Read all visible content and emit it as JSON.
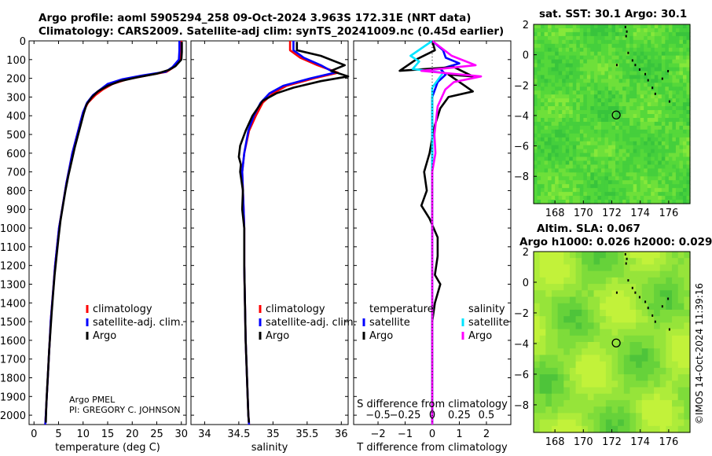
{
  "titles": {
    "line1": "Argo profile: aoml 5905294_258 09-Oct-2024 3.963S 172.31E (NRT data)",
    "line2": "Climatology: CARS2009. Satellite-adj clim: synTS_20241009.nc (0.45d earlier)",
    "sst": "sat. SST: 30.1 Argo: 30.1",
    "sla1": "Altim. SLA: 0.067",
    "sla2": "Argo h1000: 0.026 h2000: 0.029"
  },
  "side_stamp": "©IMOS 14-Oct-2024 11:39:16",
  "colors": {
    "climatology": "#ff0000",
    "satellite_adj": "#0000ff",
    "argo": "#000000",
    "sat_temp": "#0000ff",
    "sat_sal": "#00e5ff",
    "argo_sal": "#ff00ff"
  },
  "chart_data": [
    {
      "id": "temperature",
      "type": "line",
      "xlabel": "temperature (deg C)",
      "ylabel": "",
      "xlim": [
        -1,
        31
      ],
      "xticks": [
        0,
        5,
        10,
        15,
        20,
        25,
        30
      ],
      "ylim": [
        0,
        2050
      ],
      "yticks": [
        0,
        100,
        200,
        300,
        400,
        500,
        600,
        700,
        800,
        900,
        1000,
        1100,
        1200,
        1300,
        1400,
        1500,
        1600,
        1700,
        1800,
        1900,
        2000
      ],
      "legend": [
        "climatology",
        "satellite-adj. clim.",
        "Argo"
      ],
      "legend_position": "lower-right",
      "annotation": [
        "Argo PMEL",
        "PI: GREGORY C. JOHNSON"
      ],
      "series": [
        {
          "name": "climatology",
          "points": [
            [
              30.0,
              0
            ],
            [
              30.0,
              50
            ],
            [
              29.8,
              100
            ],
            [
              28.5,
              140
            ],
            [
              27,
              165
            ],
            [
              23,
              185
            ],
            [
              19,
              205
            ],
            [
              16,
              230
            ],
            [
              14,
              260
            ],
            [
              12.5,
              290
            ],
            [
              11,
              330
            ],
            [
              10,
              380
            ],
            [
              9.5,
              430
            ],
            [
              9,
              480
            ],
            [
              8.5,
              530
            ],
            [
              7.8,
              600
            ],
            [
              7.2,
              680
            ],
            [
              6.6,
              760
            ],
            [
              6.1,
              840
            ],
            [
              5.6,
              920
            ],
            [
              5.1,
              1000
            ],
            [
              4.7,
              1100
            ],
            [
              4.3,
              1200
            ],
            [
              4.0,
              1300
            ],
            [
              3.7,
              1400
            ],
            [
              3.4,
              1500
            ],
            [
              3.2,
              1600
            ],
            [
              3.0,
              1700
            ],
            [
              2.8,
              1800
            ],
            [
              2.6,
              1900
            ],
            [
              2.4,
              2000
            ],
            [
              2.3,
              2050
            ]
          ]
        },
        {
          "name": "satellite-adj. clim.",
          "points": [
            [
              29.6,
              0
            ],
            [
              29.6,
              50
            ],
            [
              29.5,
              100
            ],
            [
              28.2,
              140
            ],
            [
              26.8,
              165
            ],
            [
              22,
              185
            ],
            [
              18,
              205
            ],
            [
              15,
              230
            ],
            [
              13.5,
              260
            ],
            [
              12,
              290
            ],
            [
              10.8,
              330
            ],
            [
              10,
              380
            ],
            [
              9.5,
              430
            ],
            [
              9,
              480
            ],
            [
              8.5,
              530
            ],
            [
              7.8,
              600
            ],
            [
              7.2,
              680
            ],
            [
              6.6,
              760
            ],
            [
              6.1,
              840
            ],
            [
              5.6,
              920
            ],
            [
              5.1,
              1000
            ],
            [
              4.7,
              1100
            ],
            [
              4.3,
              1200
            ],
            [
              4.0,
              1300
            ],
            [
              3.7,
              1400
            ],
            [
              3.4,
              1500
            ],
            [
              3.2,
              1600
            ],
            [
              3.0,
              1700
            ],
            [
              2.8,
              1800
            ],
            [
              2.6,
              1900
            ],
            [
              2.4,
              2000
            ],
            [
              2.3,
              2050
            ]
          ]
        },
        {
          "name": "Argo",
          "points": [
            [
              30.1,
              5
            ],
            [
              30.1,
              60
            ],
            [
              30.0,
              100
            ],
            [
              28.8,
              135
            ],
            [
              27.5,
              155
            ],
            [
              25,
              175
            ],
            [
              21,
              195
            ],
            [
              17.5,
              215
            ],
            [
              15,
              240
            ],
            [
              13,
              270
            ],
            [
              11.8,
              300
            ],
            [
              10.7,
              340
            ],
            [
              10.1,
              390
            ],
            [
              9.6,
              440
            ],
            [
              9.0,
              500
            ],
            [
              8.3,
              570
            ],
            [
              7.6,
              650
            ],
            [
              7.0,
              720
            ],
            [
              6.4,
              800
            ],
            [
              5.9,
              880
            ],
            [
              5.4,
              960
            ],
            [
              5.0,
              1050
            ],
            [
              4.6,
              1150
            ],
            [
              4.2,
              1250
            ],
            [
              3.9,
              1350
            ],
            [
              3.6,
              1450
            ],
            [
              3.35,
              1550
            ],
            [
              3.1,
              1650
            ],
            [
              2.9,
              1750
            ],
            [
              2.7,
              1850
            ],
            [
              2.5,
              1950
            ],
            [
              2.4,
              2040
            ]
          ]
        }
      ]
    },
    {
      "id": "salinity",
      "type": "line",
      "xlabel": "salinity",
      "ylabel": "",
      "xlim": [
        33.8,
        36.1
      ],
      "xticks": [
        34,
        34.5,
        35,
        35.5,
        36
      ],
      "ylim": [
        0,
        2050
      ],
      "legend": [
        "climatology",
        "satellite-adj. clim.",
        "Argo"
      ],
      "legend_position": "lower-right",
      "series": [
        {
          "name": "climatology",
          "points": [
            [
              35.25,
              0
            ],
            [
              35.25,
              50
            ],
            [
              35.4,
              90
            ],
            [
              35.65,
              130
            ],
            [
              35.95,
              170
            ],
            [
              35.6,
              200
            ],
            [
              35.2,
              240
            ],
            [
              35.0,
              280
            ],
            [
              34.85,
              330
            ],
            [
              34.75,
              400
            ],
            [
              34.65,
              480
            ],
            [
              34.58,
              600
            ],
            [
              34.55,
              700
            ],
            [
              34.56,
              800
            ],
            [
              34.57,
              900
            ],
            [
              34.58,
              1000
            ],
            [
              34.58,
              1200
            ],
            [
              34.59,
              1400
            ],
            [
              34.6,
              1600
            ],
            [
              34.62,
              1800
            ],
            [
              34.64,
              2000
            ],
            [
              34.65,
              2050
            ]
          ]
        },
        {
          "name": "satellite-adj. clim.",
          "points": [
            [
              35.3,
              0
            ],
            [
              35.3,
              50
            ],
            [
              35.45,
              90
            ],
            [
              35.7,
              130
            ],
            [
              35.9,
              170
            ],
            [
              35.55,
              200
            ],
            [
              35.15,
              240
            ],
            [
              34.95,
              280
            ],
            [
              34.82,
              330
            ],
            [
              34.72,
              400
            ],
            [
              34.64,
              480
            ],
            [
              34.58,
              600
            ],
            [
              34.55,
              700
            ],
            [
              34.56,
              800
            ],
            [
              34.57,
              900
            ],
            [
              34.58,
              1000
            ],
            [
              34.58,
              1200
            ],
            [
              34.59,
              1400
            ],
            [
              34.6,
              1600
            ],
            [
              34.62,
              1800
            ],
            [
              34.64,
              2000
            ],
            [
              34.65,
              2050
            ]
          ]
        },
        {
          "name": "Argo",
          "points": [
            [
              35.35,
              5
            ],
            [
              35.35,
              50
            ],
            [
              35.7,
              80
            ],
            [
              36.05,
              130
            ],
            [
              35.85,
              160
            ],
            [
              36.1,
              190
            ],
            [
              35.7,
              215
            ],
            [
              35.3,
              250
            ],
            [
              35.05,
              280
            ],
            [
              34.85,
              320
            ],
            [
              34.7,
              400
            ],
            [
              34.6,
              480
            ],
            [
              34.52,
              560
            ],
            [
              34.5,
              620
            ],
            [
              34.53,
              660
            ],
            [
              34.52,
              700
            ],
            [
              34.56,
              800
            ],
            [
              34.55,
              900
            ],
            [
              34.58,
              1000
            ],
            [
              34.58,
              1200
            ],
            [
              34.59,
              1400
            ],
            [
              34.6,
              1600
            ],
            [
              34.62,
              1800
            ],
            [
              34.64,
              2000
            ],
            [
              34.65,
              2040
            ]
          ]
        }
      ]
    },
    {
      "id": "difference",
      "type": "line",
      "xlabel": "T difference from climatology",
      "secondary_xlabel": "S difference from climatology",
      "xlim": [
        -2.9,
        2.9
      ],
      "xticks": [
        -2,
        -1,
        0,
        1,
        2
      ],
      "s_ticks": [
        -0.5,
        -0.25,
        0,
        0.25,
        0.5
      ],
      "s_scale": 4,
      "ylim": [
        0,
        2050
      ],
      "legend_headers": [
        "temperature",
        "salinity"
      ],
      "legend": [
        "satellite",
        "Argo",
        "satellite",
        "Argo"
      ],
      "legend_position": "lower-right",
      "series": [
        {
          "name": "satellite (temperature)",
          "points": [
            [
              0,
              0
            ],
            [
              0.4,
              50
            ],
            [
              0.5,
              90
            ],
            [
              1.0,
              120
            ],
            [
              0.3,
              150
            ],
            [
              0.5,
              180
            ],
            [
              0.2,
              220
            ],
            [
              0,
              300
            ],
            [
              0,
              2050
            ]
          ]
        },
        {
          "name": "Argo (temperature)",
          "points": [
            [
              0,
              0
            ],
            [
              0.1,
              50
            ],
            [
              -0.6,
              100
            ],
            [
              -1.2,
              160
            ],
            [
              0.8,
              140
            ],
            [
              1.5,
              190
            ],
            [
              0.6,
              180
            ],
            [
              1.2,
              240
            ],
            [
              1.5,
              270
            ],
            [
              0.6,
              300
            ],
            [
              0.3,
              360
            ],
            [
              0.1,
              450
            ],
            [
              0,
              520
            ],
            [
              -0.1,
              600
            ],
            [
              -0.3,
              700
            ],
            [
              -0.2,
              800
            ],
            [
              -0.4,
              880
            ],
            [
              -0.1,
              950
            ],
            [
              0.2,
              1050
            ],
            [
              0.2,
              1150
            ],
            [
              0.1,
              1250
            ],
            [
              0.3,
              1300
            ],
            [
              0.1,
              1400
            ],
            [
              0,
              1500
            ],
            [
              0,
              2050
            ]
          ]
        },
        {
          "name": "satellite (salinity)",
          "points": [
            [
              0,
              0
            ],
            [
              -0.2,
              80
            ],
            [
              -0.12,
              110
            ],
            [
              -0.18,
              150
            ],
            [
              0.1,
              170
            ],
            [
              0,
              250
            ],
            [
              0,
              350
            ],
            [
              0,
              450
            ],
            [
              0,
              700
            ],
            [
              0,
              2050
            ]
          ]
        },
        {
          "name": "Argo (salinity)",
          "points": [
            [
              0,
              0
            ],
            [
              0.18,
              80
            ],
            [
              0.4,
              130
            ],
            [
              -0.1,
              160
            ],
            [
              0.45,
              190
            ],
            [
              0.2,
              220
            ],
            [
              0.12,
              260
            ],
            [
              0.05,
              350
            ],
            [
              0.02,
              500
            ],
            [
              0.03,
              600
            ],
            [
              0,
              700
            ],
            [
              0,
              2050
            ]
          ]
        }
      ]
    },
    {
      "id": "sst_map",
      "type": "heatmap",
      "xlim": [
        166.5,
        177.5
      ],
      "xticks": [
        168,
        170,
        172,
        174,
        176
      ],
      "ylim": [
        -9.8,
        2
      ],
      "yticks": [
        2,
        0,
        -2,
        -4,
        -6,
        -8
      ],
      "marker": {
        "lon": 172.31,
        "lat": -3.963
      }
    },
    {
      "id": "sla_map",
      "type": "heatmap",
      "xlim": [
        166.5,
        177.5
      ],
      "xticks": [
        168,
        170,
        172,
        174,
        176
      ],
      "ylim": [
        -9.8,
        2
      ],
      "yticks": [
        2,
        0,
        -2,
        -4,
        -6,
        -8
      ],
      "marker": {
        "lon": 172.31,
        "lat": -3.963
      }
    }
  ]
}
